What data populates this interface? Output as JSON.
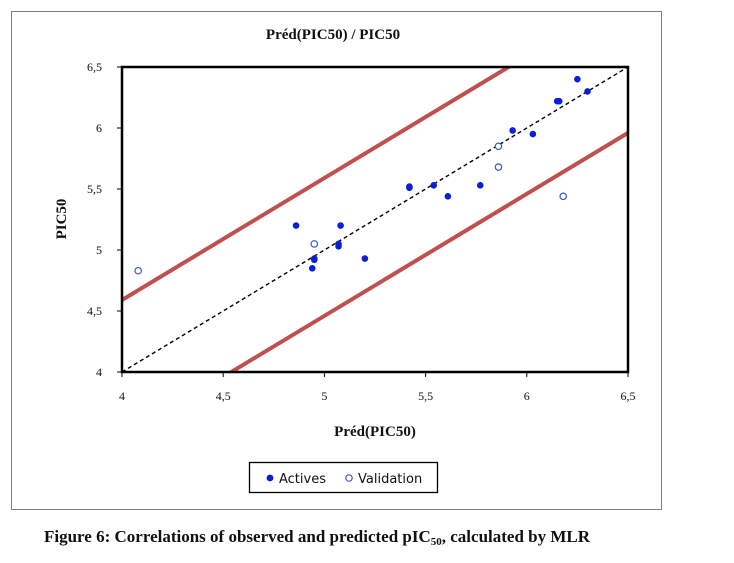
{
  "chart_data": {
    "type": "scatter",
    "title": "Préd(PIC50) / PIC50",
    "xlabel": "Préd(PIC50)",
    "ylabel": "PIC50",
    "xlim": [
      4,
      6.5
    ],
    "ylim": [
      4,
      6.5
    ],
    "xticks": [
      "4",
      "4,5",
      "5",
      "5,5",
      "6",
      "6,5"
    ],
    "yticks": [
      "4",
      "4,5",
      "5",
      "5,5",
      "6",
      "6,5"
    ],
    "grid": false,
    "legend_position": "bottom",
    "series": [
      {
        "name": "Actives",
        "marker": "filled-circle",
        "color": "#0b1fd9",
        "points": [
          [
            4.86,
            5.2
          ],
          [
            4.94,
            4.85
          ],
          [
            4.95,
            4.92
          ],
          [
            4.95,
            4.93
          ],
          [
            5.07,
            5.05
          ],
          [
            5.07,
            5.03
          ],
          [
            5.08,
            5.2
          ],
          [
            5.2,
            4.93
          ],
          [
            5.42,
            5.51
          ],
          [
            5.42,
            5.52
          ],
          [
            5.54,
            5.53
          ],
          [
            5.61,
            5.44
          ],
          [
            5.77,
            5.53
          ],
          [
            5.93,
            5.98
          ],
          [
            6.03,
            5.95
          ],
          [
            6.15,
            6.22
          ],
          [
            6.16,
            6.22
          ],
          [
            6.25,
            6.4
          ],
          [
            6.3,
            6.3
          ]
        ]
      },
      {
        "name": "Validation",
        "marker": "open-circle",
        "color": "#3a58d0",
        "points": [
          [
            4.08,
            4.83
          ],
          [
            4.95,
            5.05
          ],
          [
            5.86,
            5.85
          ],
          [
            5.86,
            5.68
          ],
          [
            6.18,
            5.44
          ]
        ]
      }
    ],
    "reference_lines": {
      "identity": {
        "color": "#000000",
        "style": "dashed",
        "from": [
          4,
          4
        ],
        "to": [
          6.5,
          6.5
        ]
      },
      "upper_band": {
        "color": "#c0504d",
        "from": [
          4,
          4.59
        ],
        "to": [
          6.5,
          7.09
        ]
      },
      "lower_band": {
        "color": "#c0504d",
        "from": [
          4,
          3.46
        ],
        "to": [
          6.5,
          5.96
        ]
      }
    }
  },
  "figure_caption": {
    "text": "Figure 6: Correlations of observed and predicted pIC",
    "subscript": "50",
    "suffix": ", calculated by MLR"
  }
}
